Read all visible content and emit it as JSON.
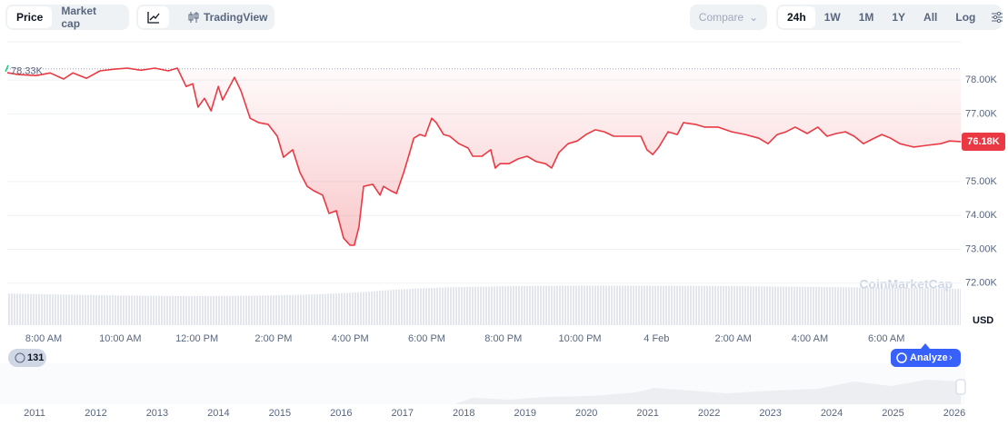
{
  "toolbar": {
    "tabs": [
      "Price",
      "Market cap"
    ],
    "view": "TradingView",
    "compare": "Compare",
    "ranges": [
      "24h",
      "1W",
      "1M",
      "1Y",
      "All"
    ],
    "log": "Log"
  },
  "chart_data": {
    "type": "line",
    "color": "#ea3943",
    "grid": true,
    "x": [
      7.05,
      7.34,
      7.81,
      8.17,
      8.52,
      8.76,
      9.12,
      9.47,
      9.83,
      10.18,
      10.54,
      10.9,
      11.25,
      11.49,
      11.72,
      11.89,
      12.03,
      12.2,
      12.37,
      12.56,
      12.67,
      12.98,
      13.15,
      13.39,
      13.62,
      13.86,
      14.1,
      14.26,
      14.5,
      14.69,
      14.88,
      15.05,
      15.28,
      15.45,
      15.64,
      15.83,
      16.0,
      16.11,
      16.23,
      16.35,
      16.59,
      16.78,
      16.87,
      17.06,
      17.21,
      17.4,
      17.54,
      17.66,
      17.82,
      17.96,
      18.13,
      18.25,
      18.44,
      18.6,
      18.84,
      19.08,
      19.2,
      19.44,
      19.67,
      19.79,
      19.91,
      20.15,
      20.38,
      20.62,
      20.86,
      21.1,
      21.26,
      21.45,
      21.69,
      21.93,
      22.16,
      22.4,
      22.64,
      22.88,
      23.23,
      23.59,
      23.75,
      23.9,
      24.06,
      24.3,
      24.54,
      24.7,
      25.01,
      25.25,
      25.6,
      25.96,
      26.32,
      26.67,
      26.91,
      27.15,
      27.38,
      27.62,
      27.93,
      28.21,
      28.45,
      28.69,
      28.93,
      29.16,
      29.4,
      29.64,
      29.88,
      30.11,
      30.35,
      30.71,
      31.06,
      31.42,
      31.65,
      31.94
    ],
    "values": [
      78215,
      78160,
      78130,
      78210,
      78030,
      78210,
      78050,
      78270,
      78320,
      78350,
      78290,
      78350,
      78270,
      78350,
      77810,
      77890,
      77200,
      77460,
      77090,
      77810,
      77410,
      78080,
      77680,
      76870,
      76740,
      76690,
      76340,
      75720,
      75940,
      75270,
      74860,
      74730,
      74600,
      74060,
      74140,
      73330,
      73120,
      73120,
      73660,
      74860,
      74920,
      74600,
      74860,
      74730,
      74650,
      75270,
      75800,
      76280,
      76390,
      76340,
      76870,
      76740,
      76390,
      76340,
      76120,
      75990,
      75750,
      75750,
      75940,
      75400,
      75530,
      75530,
      75670,
      75750,
      75590,
      75530,
      75400,
      75860,
      76120,
      76200,
      76390,
      76530,
      76470,
      76340,
      76340,
      76340,
      75940,
      75800,
      76020,
      76470,
      76390,
      76740,
      76690,
      76610,
      76610,
      76470,
      76390,
      76280,
      76120,
      76390,
      76470,
      76610,
      76420,
      76610,
      76340,
      76420,
      76470,
      76340,
      76120,
      76260,
      76390,
      76280,
      76120,
      76020,
      76070,
      76120,
      76200,
      76180
    ],
    "xlim": [
      7.05,
      31.94
    ],
    "ylim": [
      70760,
      79290
    ],
    "xticks": [
      {
        "value": 8,
        "label": "8:00 AM"
      },
      {
        "value": 10,
        "label": "10:00 AM"
      },
      {
        "value": 12,
        "label": "12:00 PM"
      },
      {
        "value": 14,
        "label": "2:00 PM"
      },
      {
        "value": 16,
        "label": "4:00 PM"
      },
      {
        "value": 18,
        "label": "6:00 PM"
      },
      {
        "value": 20,
        "label": "8:00 PM"
      },
      {
        "value": 22,
        "label": "10:00 PM"
      },
      {
        "value": 24,
        "label": "4 Feb"
      },
      {
        "value": 26,
        "label": "2:00 AM"
      },
      {
        "value": 28,
        "label": "4:00 AM"
      },
      {
        "value": 30,
        "label": "6:00 AM"
      }
    ],
    "yticks": [
      {
        "value": 72000,
        "label": "72.00K"
      },
      {
        "value": 73000,
        "label": "73.00K"
      },
      {
        "value": 74000,
        "label": "74.00K"
      },
      {
        "value": 75000,
        "label": "75.00K"
      },
      {
        "value": 77000,
        "label": "77.00K"
      },
      {
        "value": 78000,
        "label": "78.00K"
      }
    ],
    "reference": {
      "value": 78330,
      "label": "78.33K"
    },
    "current": {
      "value": 76180,
      "label": "76.18K"
    },
    "currency": "USD",
    "watermark": "CoinMarketCap"
  },
  "navigator": {
    "badge": "131",
    "button": "Analyze",
    "years": [
      "2011",
      "2012",
      "2013",
      "2014",
      "2015",
      "2016",
      "2017",
      "2018",
      "2019",
      "2020",
      "2021",
      "2022",
      "2023",
      "2024",
      "2025",
      "2026"
    ]
  }
}
